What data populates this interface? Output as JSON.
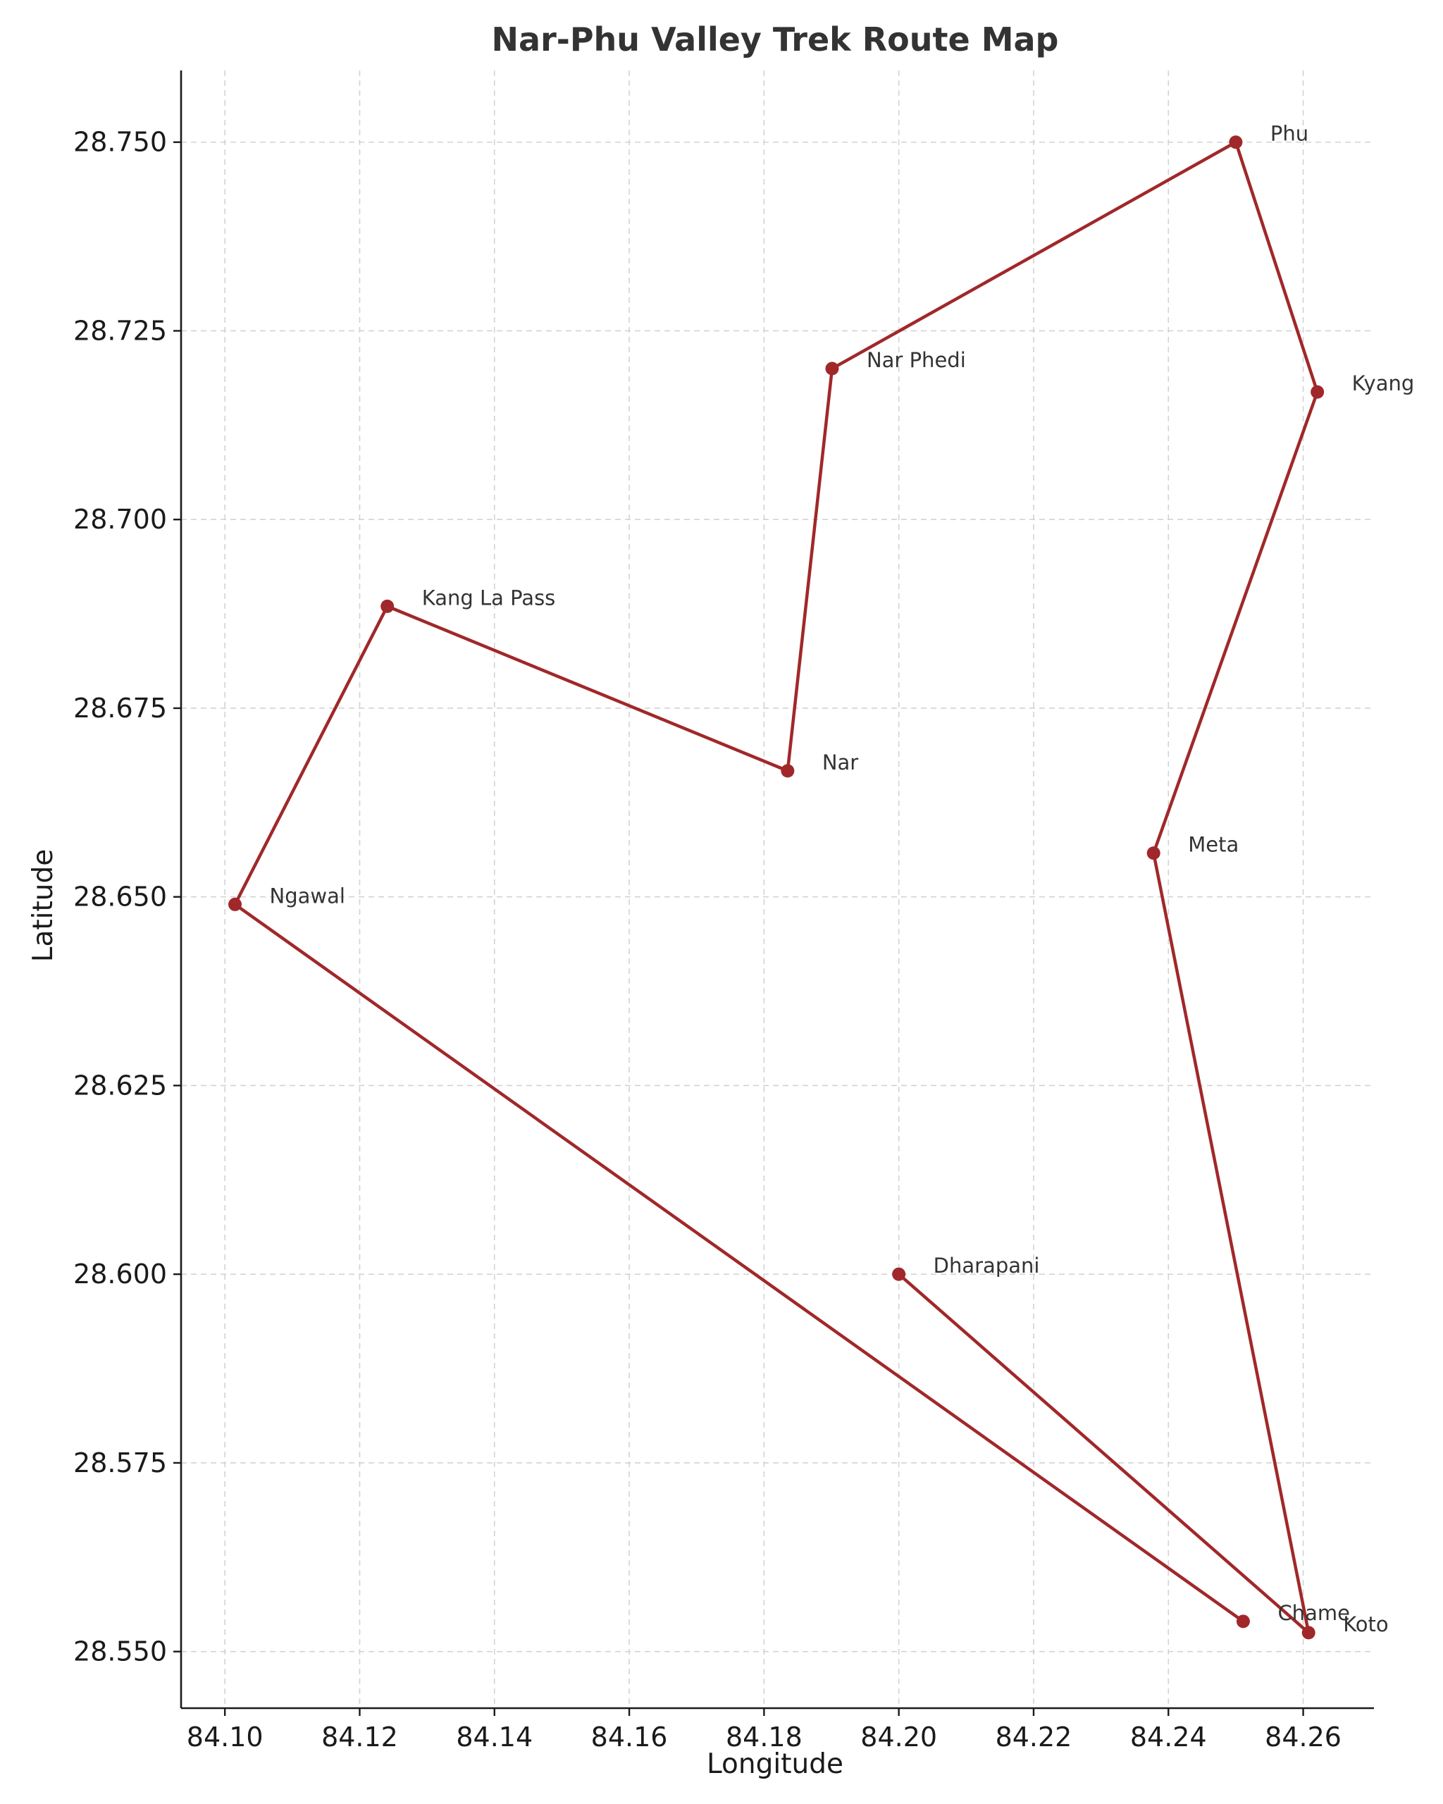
{
  "chart_data": {
    "type": "line",
    "title": "Nar-Phu Valley Trek Route Map",
    "xlabel": "Longitude",
    "ylabel": "Latitude",
    "xlim": [
      84.0935,
      84.2705
    ],
    "ylim": [
      28.5425,
      28.7595
    ],
    "xticks": [
      84.1,
      84.12,
      84.14,
      84.16,
      84.18,
      84.2,
      84.22,
      84.24,
      84.26
    ],
    "xtick_labels": [
      "84.10",
      "84.12",
      "84.14",
      "84.16",
      "84.18",
      "84.20",
      "84.22",
      "84.24",
      "84.26"
    ],
    "yticks": [
      28.55,
      28.575,
      28.6,
      28.625,
      28.65,
      28.675,
      28.7,
      28.725,
      28.75
    ],
    "ytick_labels": [
      "28.550",
      "28.575",
      "28.600",
      "28.625",
      "28.650",
      "28.675",
      "28.700",
      "28.725",
      "28.750"
    ],
    "grid": true,
    "color": "#a0282a",
    "points": [
      {
        "name": "Dharapani",
        "x": 84.2,
        "y": 28.6
      },
      {
        "name": "Koto",
        "x": 84.2608,
        "y": 28.5525
      },
      {
        "name": "Meta",
        "x": 84.2378,
        "y": 28.6558
      },
      {
        "name": "Kyang",
        "x": 84.2621,
        "y": 28.7169
      },
      {
        "name": "Phu",
        "x": 84.25,
        "y": 28.75
      },
      {
        "name": "Nar Phedi",
        "x": 84.1901,
        "y": 28.72
      },
      {
        "name": "Nar",
        "x": 84.1835,
        "y": 28.6667
      },
      {
        "name": "Kang La Pass",
        "x": 84.1241,
        "y": 28.6885
      },
      {
        "name": "Ngawal",
        "x": 84.1015,
        "y": 28.649
      },
      {
        "name": "Chame",
        "x": 84.2511,
        "y": 28.554
      }
    ]
  }
}
